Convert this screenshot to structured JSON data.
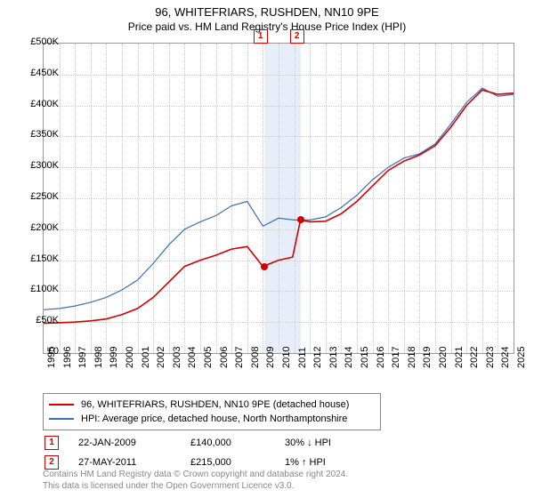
{
  "title": "96, WHITEFRIARS, RUSHDEN, NN10 9PE",
  "subtitle": "Price paid vs. HM Land Registry's House Price Index (HPI)",
  "chart": {
    "type": "line",
    "background_color": "#ffffff",
    "grid_color": "#cccccc",
    "y": {
      "min": 0,
      "max": 500000,
      "step": 50000,
      "prefix": "£",
      "suffix": "K",
      "divisor": 1000,
      "label_fontsize": 11
    },
    "x": {
      "min": 1995,
      "max": 2025,
      "step": 1,
      "label_fontsize": 11
    },
    "series": [
      {
        "name": "96, WHITEFRIARS, RUSHDEN, NN10 9PE (detached house)",
        "color": "#d40000",
        "width": 1.6,
        "data": [
          [
            1995,
            48000
          ],
          [
            1996,
            49000
          ],
          [
            1997,
            50000
          ],
          [
            1998,
            52000
          ],
          [
            1999,
            55000
          ],
          [
            2000,
            62000
          ],
          [
            2001,
            72000
          ],
          [
            2002,
            90000
          ],
          [
            2003,
            115000
          ],
          [
            2004,
            140000
          ],
          [
            2005,
            150000
          ],
          [
            2006,
            158000
          ],
          [
            2007,
            168000
          ],
          [
            2008,
            172000
          ],
          [
            2009,
            140000
          ],
          [
            2009.5,
            145000
          ],
          [
            2010,
            150000
          ],
          [
            2010.9,
            155000
          ],
          [
            2011.4,
            215000
          ],
          [
            2012,
            212000
          ],
          [
            2013,
            213000
          ],
          [
            2014,
            225000
          ],
          [
            2015,
            245000
          ],
          [
            2016,
            270000
          ],
          [
            2017,
            295000
          ],
          [
            2018,
            310000
          ],
          [
            2019,
            320000
          ],
          [
            2020,
            335000
          ],
          [
            2021,
            365000
          ],
          [
            2022,
            400000
          ],
          [
            2023,
            425000
          ],
          [
            2024,
            418000
          ],
          [
            2025,
            420000
          ]
        ]
      },
      {
        "name": "HPI: Average price, detached house, North Northamptonshire",
        "color": "#3b6fb6",
        "width": 1.2,
        "data": [
          [
            1995,
            70000
          ],
          [
            1996,
            72000
          ],
          [
            1997,
            76000
          ],
          [
            1998,
            82000
          ],
          [
            1999,
            90000
          ],
          [
            2000,
            102000
          ],
          [
            2001,
            118000
          ],
          [
            2002,
            145000
          ],
          [
            2003,
            175000
          ],
          [
            2004,
            200000
          ],
          [
            2005,
            212000
          ],
          [
            2006,
            222000
          ],
          [
            2007,
            238000
          ],
          [
            2008,
            245000
          ],
          [
            2009,
            205000
          ],
          [
            2010,
            218000
          ],
          [
            2011,
            215000
          ],
          [
            2012,
            215000
          ],
          [
            2013,
            220000
          ],
          [
            2014,
            235000
          ],
          [
            2015,
            255000
          ],
          [
            2016,
            280000
          ],
          [
            2017,
            300000
          ],
          [
            2018,
            315000
          ],
          [
            2019,
            322000
          ],
          [
            2020,
            338000
          ],
          [
            2021,
            370000
          ],
          [
            2022,
            405000
          ],
          [
            2023,
            428000
          ],
          [
            2024,
            415000
          ],
          [
            2025,
            418000
          ]
        ]
      }
    ],
    "markers": [
      {
        "id": "1",
        "x": 2009.07,
        "price": 140000,
        "color": "#d40000"
      },
      {
        "id": "2",
        "x": 2011.4,
        "price": 215000,
        "color": "#d40000"
      }
    ],
    "marker_band": {
      "from": 2009.07,
      "to": 2011.4,
      "fill": "#e8eef9",
      "border": "#cfd9ee"
    }
  },
  "transactions": [
    {
      "marker": "1",
      "date": "22-JAN-2009",
      "price": "£140,000",
      "delta": "30% ↓ HPI",
      "marker_color": "#d40000"
    },
    {
      "marker": "2",
      "date": "27-MAY-2011",
      "price": "£215,000",
      "delta": "1% ↑ HPI",
      "marker_color": "#d40000"
    }
  ],
  "footer": {
    "line1": "Contains HM Land Registry data © Crown copyright and database right 2024.",
    "line2": "This data is licensed under the Open Government Licence v3.0."
  }
}
